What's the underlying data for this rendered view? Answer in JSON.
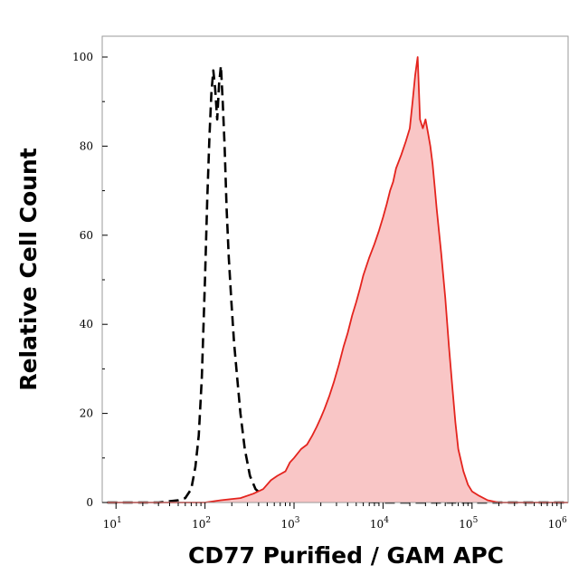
{
  "chart_data": {
    "type": "area",
    "title": "",
    "xlabel": "CD77 Purified / GAM APC",
    "ylabel": "Relative Cell Count",
    "x_scale": "log",
    "xlim": [
      7,
      1200000
    ],
    "ylim": [
      0,
      100
    ],
    "x_ticks": [
      {
        "value": 10,
        "base": "10",
        "exp": "1"
      },
      {
        "value": 100,
        "base": "10",
        "exp": "2"
      },
      {
        "value": 1000,
        "base": "10",
        "exp": "3"
      },
      {
        "value": 10000,
        "base": "10",
        "exp": "4"
      },
      {
        "value": 100000,
        "base": "10",
        "exp": "5"
      },
      {
        "value": 1000000,
        "base": "10",
        "exp": "6"
      }
    ],
    "y_ticks": [
      "0",
      "20",
      "40",
      "60",
      "80",
      "100"
    ],
    "y_tick_values": [
      0,
      20,
      40,
      60,
      80,
      100
    ],
    "grid": false,
    "legend": "none",
    "series": [
      {
        "style": "dashed-line",
        "color": "#000000",
        "points": [
          [
            8,
            0
          ],
          [
            30,
            0
          ],
          [
            50,
            0.5
          ],
          [
            60,
            1
          ],
          [
            70,
            3
          ],
          [
            78,
            8
          ],
          [
            85,
            15
          ],
          [
            92,
            28
          ],
          [
            100,
            50
          ],
          [
            106,
            68
          ],
          [
            112,
            82
          ],
          [
            118,
            92
          ],
          [
            124,
            97
          ],
          [
            130,
            93
          ],
          [
            137,
            86
          ],
          [
            144,
            94
          ],
          [
            151,
            98
          ],
          [
            158,
            90
          ],
          [
            166,
            80
          ],
          [
            175,
            66
          ],
          [
            185,
            55
          ],
          [
            198,
            45
          ],
          [
            212,
            36
          ],
          [
            230,
            28
          ],
          [
            250,
            20
          ],
          [
            280,
            12
          ],
          [
            320,
            6
          ],
          [
            370,
            3
          ],
          [
            450,
            1.5
          ],
          [
            550,
            1
          ],
          [
            700,
            0.5
          ],
          [
            1000,
            0.5
          ],
          [
            3000,
            0.3
          ],
          [
            10000,
            0
          ],
          [
            1200000,
            0
          ]
        ]
      },
      {
        "style": "filled-line",
        "color": "#e4241e",
        "fill": "#f9c6c6",
        "points": [
          [
            8,
            0
          ],
          [
            100,
            0
          ],
          [
            150,
            0.5
          ],
          [
            250,
            1
          ],
          [
            350,
            2
          ],
          [
            450,
            3
          ],
          [
            550,
            5
          ],
          [
            650,
            6
          ],
          [
            800,
            7
          ],
          [
            900,
            9
          ],
          [
            1000,
            10
          ],
          [
            1200,
            12
          ],
          [
            1400,
            13
          ],
          [
            1600,
            15
          ],
          [
            1800,
            17
          ],
          [
            2000,
            19
          ],
          [
            2200,
            21
          ],
          [
            2500,
            24
          ],
          [
            2800,
            27
          ],
          [
            3200,
            31
          ],
          [
            3600,
            35
          ],
          [
            4000,
            38
          ],
          [
            4500,
            42
          ],
          [
            5000,
            45
          ],
          [
            5500,
            48
          ],
          [
            6000,
            51
          ],
          [
            7000,
            55
          ],
          [
            8000,
            58
          ],
          [
            9000,
            61
          ],
          [
            10000,
            64
          ],
          [
            11000,
            67
          ],
          [
            12000,
            70
          ],
          [
            13000,
            72
          ],
          [
            14000,
            75
          ],
          [
            16000,
            78
          ],
          [
            18000,
            81
          ],
          [
            20000,
            84
          ],
          [
            21500,
            90
          ],
          [
            23000,
            96
          ],
          [
            24500,
            100
          ],
          [
            26000,
            86
          ],
          [
            28000,
            84
          ],
          [
            30000,
            86
          ],
          [
            32000,
            83
          ],
          [
            34000,
            80
          ],
          [
            36000,
            76
          ],
          [
            38000,
            71
          ],
          [
            40000,
            66
          ],
          [
            45000,
            56
          ],
          [
            50000,
            46
          ],
          [
            55000,
            35
          ],
          [
            60000,
            26
          ],
          [
            65000,
            18
          ],
          [
            70000,
            12
          ],
          [
            80000,
            7
          ],
          [
            90000,
            4
          ],
          [
            100000,
            2.5
          ],
          [
            120000,
            1.5
          ],
          [
            150000,
            0.5
          ],
          [
            200000,
            0
          ],
          [
            1200000,
            0
          ]
        ]
      }
    ]
  }
}
